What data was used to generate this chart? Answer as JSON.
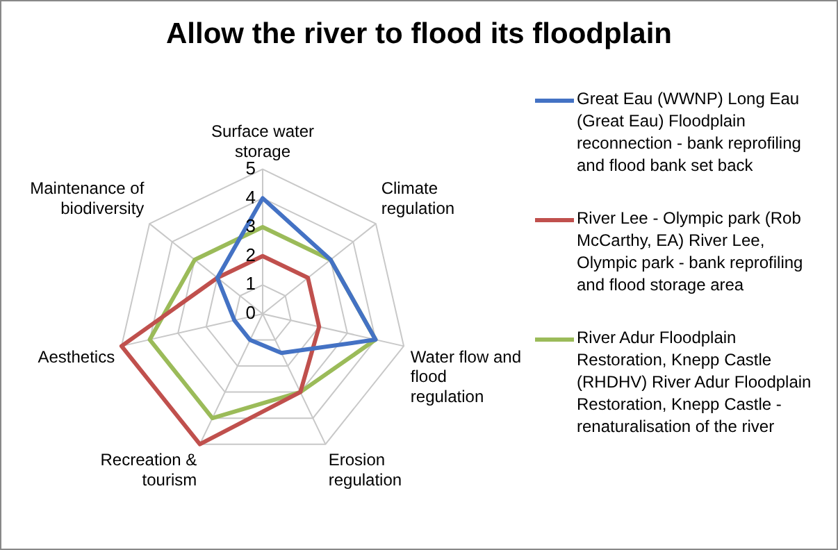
{
  "chart_data": {
    "type": "radar",
    "title": "Allow the river to flood its floodplain",
    "categories": [
      "Surface water storage",
      "Climate regulation",
      "Water flow and flood regulation",
      "Erosion regulation",
      "Recreation & tourism",
      "Aesthetics",
      "Maintenance of biodiversity"
    ],
    "series": [
      {
        "name": "Great Eau (WWNP) Long Eau (Great Eau) Floodplain reconnection - bank reprofiling and flood bank set back",
        "color": "#4472c4",
        "values": [
          4,
          3,
          4,
          1.5,
          1,
          1,
          2
        ]
      },
      {
        "name": "River Lee - Olympic park (Rob McCarthy, EA) River Lee, Olympic park - bank reprofiling and flood storage area",
        "color": "#c0504d",
        "values": [
          2,
          2,
          2,
          3,
          5,
          5,
          2
        ]
      },
      {
        "name": "River Adur Floodplain Restoration, Knepp Castle (RHDHV) River Adur Floodplain Restoration, Knepp Castle - renaturalisation of the river",
        "color": "#9bbb59",
        "values": [
          3,
          3,
          4,
          3,
          4,
          4,
          3
        ]
      }
    ],
    "ylim": [
      0,
      5
    ],
    "yticks": [
      0,
      1,
      2,
      3,
      4,
      5
    ],
    "grid": true,
    "legend": "right",
    "marker": "none",
    "line_style": "solid"
  }
}
